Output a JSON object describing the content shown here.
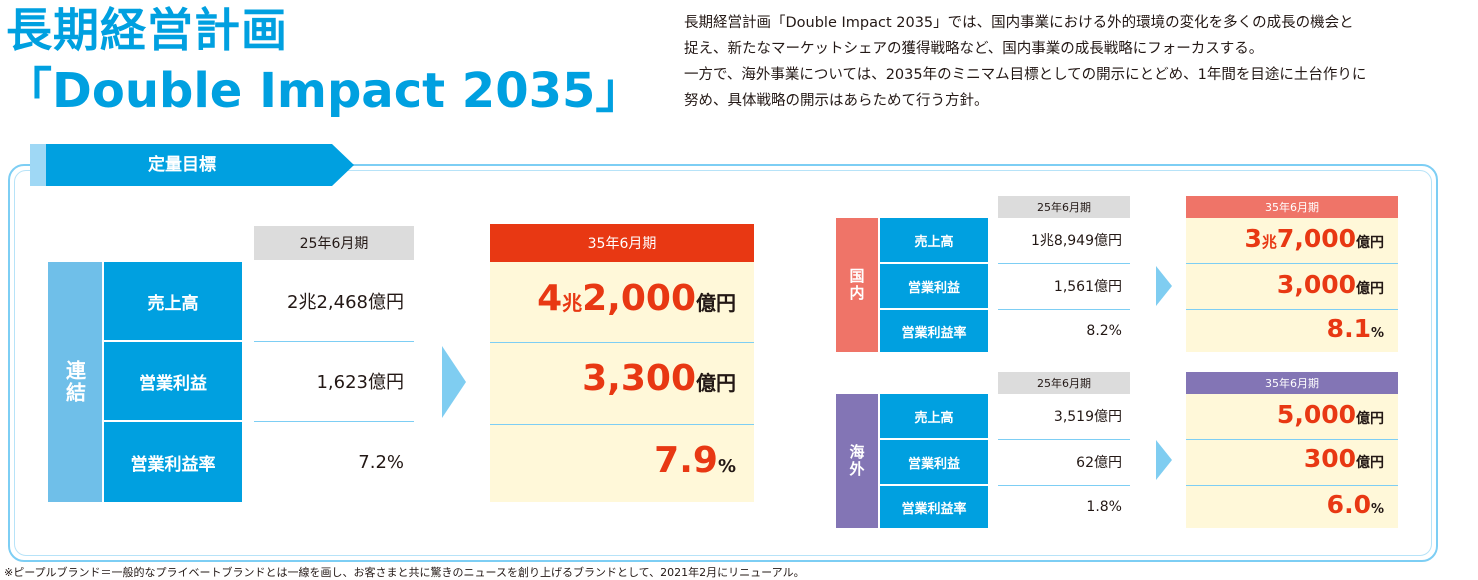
{
  "header": {
    "title_line1": "長期経営計画",
    "title_line2": "「Double Impact 2035」"
  },
  "intro": {
    "lines": [
      "長期経営計画「Double Impact 2035」では、国内事業における外的環境の変化を多くの成長の機会と",
      "捉え、新たなマーケットシェアの獲得戦略など、国内事業の成長戦略にフォーカスする。",
      "一方で、海外事業については、2035年のミニマム目標としての開示にとどめ、1年間を目途に土台作りに",
      "努め、具体戦略の開示はあらためて行う方針。"
    ]
  },
  "section_tab": "定量目標",
  "consolidated": {
    "label": "連結",
    "base_header": "25年6月期",
    "target_header": "35年6月期",
    "rows": [
      {
        "label": "売上高",
        "base": "2兆2,468億円",
        "target_big_a": "4",
        "target_small_a": "兆",
        "target_big_b": "2,000",
        "target_unit": "億円"
      },
      {
        "label": "営業利益",
        "base": "1,623億円",
        "target_big": "3,300",
        "target_unit": "億円"
      },
      {
        "label": "営業利益率",
        "base": "7.2%",
        "target_big": "7.9",
        "target_unit": "%"
      }
    ]
  },
  "domestic": {
    "label": "国内",
    "base_header": "25年6月期",
    "target_header": "35年6月期",
    "rows": [
      {
        "label": "売上高",
        "base": "1兆8,949億円",
        "target_big_a": "3",
        "target_small_a": "兆",
        "target_big_b": "7,000",
        "target_unit": "億円"
      },
      {
        "label": "営業利益",
        "base": "1,561億円",
        "target_big": "3,000",
        "target_unit": "億円"
      },
      {
        "label": "営業利益率",
        "base": "8.2%",
        "target_big": "8.1",
        "target_unit": "%"
      }
    ]
  },
  "overseas": {
    "label": "海外",
    "base_header": "25年6月期",
    "target_header": "35年6月期",
    "rows": [
      {
        "label": "売上高",
        "base": "3,519億円",
        "target_big": "5,000",
        "target_unit": "億円"
      },
      {
        "label": "営業利益",
        "base": "62億円",
        "target_big": "300",
        "target_unit": "億円"
      },
      {
        "label": "営業利益率",
        "base": "1.8%",
        "target_big": "6.0",
        "target_unit": "%"
      }
    ]
  },
  "footnote": "※ピープルブランド＝一般的なプライベートブランドとは一線を画し、お客さまと共に驚きのニュースを創り上げるブランドとして、2021年2月にリニューアル。",
  "colors": {
    "brand_blue": "#00a0e0",
    "light_blue": "#6fbfe9",
    "target_red": "#e83813",
    "domestic_header": "#ef7468",
    "overseas_header": "#8375b5",
    "target_bg": "#fff8d9"
  }
}
